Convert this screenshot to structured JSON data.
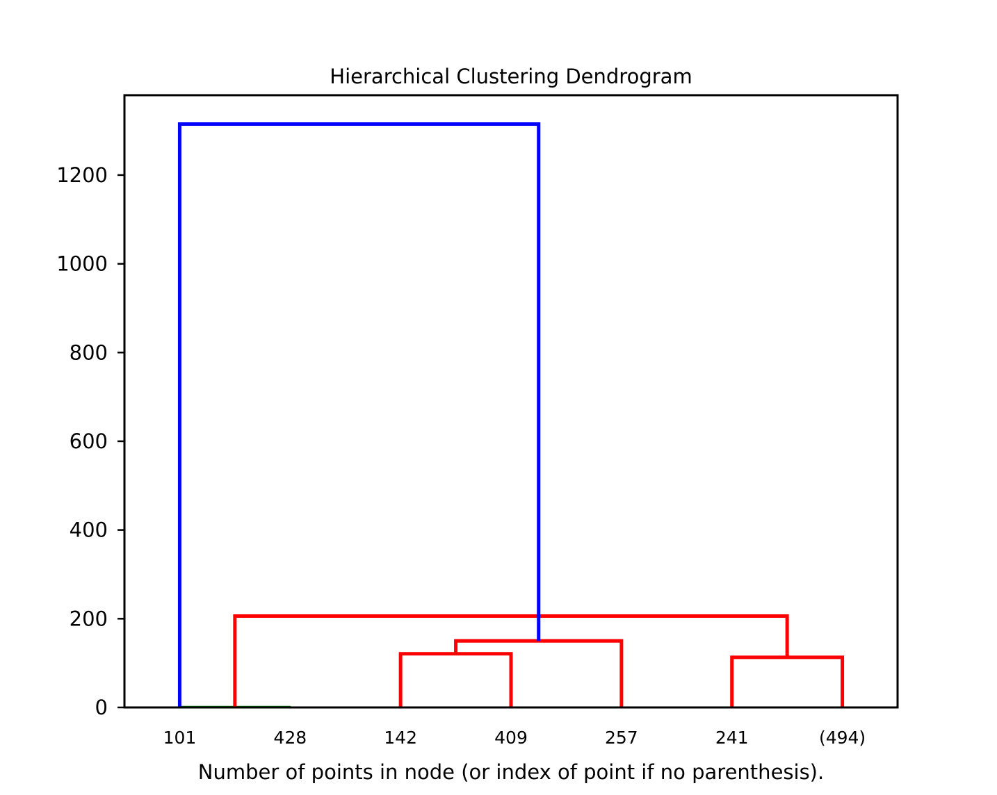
{
  "chart_data": {
    "type": "dendrogram",
    "title": "Hierarchical Clustering Dendrogram",
    "xlabel": "Number of points in node (or index of point if no parenthesis).",
    "ylabel": "",
    "ylim": [
      0,
      1380
    ],
    "y_ticks": [
      0,
      200,
      400,
      600,
      800,
      1000,
      1200
    ],
    "leaves": [
      "101",
      "428",
      "142",
      "409",
      "257",
      "241",
      "(494)"
    ],
    "colors": {
      "cluster_small": "#008000",
      "cluster_main": "#ff0000",
      "root": "#0000ff"
    },
    "links": [
      {
        "left": 0,
        "right": 1,
        "height": 2,
        "color": "cluster_small"
      },
      {
        "left": 2,
        "right": 3,
        "height": 121,
        "color": "cluster_main"
      },
      {
        "left": 5,
        "right": 6,
        "height": 113,
        "color": "cluster_main"
      },
      {
        "left": 4,
        "right": 8,
        "height": 150,
        "color": "cluster_main"
      },
      {
        "left": 7,
        "right": 9,
        "height": 206,
        "color": "cluster_main"
      },
      {
        "left": 0,
        "right": 10,
        "height": 1315,
        "color": "root"
      }
    ]
  }
}
